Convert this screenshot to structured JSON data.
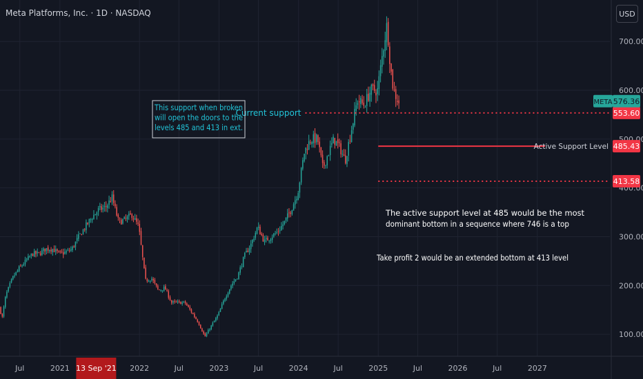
{
  "header": {
    "title": "Meta Platforms, Inc. · 1D · NASDAQ",
    "currency_button": "USD"
  },
  "chart_data": {
    "type": "candlestick",
    "symbol": "META",
    "y_axis": {
      "ticks": [
        100,
        200,
        300,
        400,
        500,
        600,
        700
      ],
      "tick_labels": [
        "100.00",
        "200.00",
        "300.00",
        "400.00",
        "500.00",
        "600.00",
        "700.00"
      ],
      "range": [
        55,
        785
      ]
    },
    "x_axis": {
      "range": [
        "2020-04-01",
        "2027-11-30"
      ],
      "ticks": [
        {
          "date": "2020-07-01",
          "label": "Jul"
        },
        {
          "date": "2021-01-01",
          "label": "2021"
        },
        {
          "date": "2022-01-01",
          "label": "2022"
        },
        {
          "date": "2022-07-01",
          "label": "Jul"
        },
        {
          "date": "2023-01-01",
          "label": "2023"
        },
        {
          "date": "2023-07-01",
          "label": "Jul"
        },
        {
          "date": "2024-01-01",
          "label": "2024"
        },
        {
          "date": "2024-07-01",
          "label": "Jul"
        },
        {
          "date": "2025-01-01",
          "label": "2025"
        },
        {
          "date": "2025-07-01",
          "label": "Jul"
        },
        {
          "date": "2026-01-01",
          "label": "2026"
        },
        {
          "date": "2026-07-01",
          "label": "Jul"
        },
        {
          "date": "2027-01-01",
          "label": "2027"
        }
      ],
      "crosshair_label": {
        "date": "2021-09-13",
        "label": "13 Sep '21",
        "color": "#b2191c"
      }
    },
    "price_path": [
      [
        "2020-04-01",
        155
      ],
      [
        "2020-04-15",
        135
      ],
      [
        "2020-05-01",
        180
      ],
      [
        "2020-06-01",
        215
      ],
      [
        "2020-07-01",
        235
      ],
      [
        "2020-08-01",
        250
      ],
      [
        "2020-09-01",
        265
      ],
      [
        "2020-10-01",
        265
      ],
      [
        "2020-11-01",
        275
      ],
      [
        "2020-12-01",
        275
      ],
      [
        "2021-01-01",
        265
      ],
      [
        "2021-02-01",
        268
      ],
      [
        "2021-03-01",
        275
      ],
      [
        "2021-04-01",
        300
      ],
      [
        "2021-05-01",
        320
      ],
      [
        "2021-06-01",
        340
      ],
      [
        "2021-07-01",
        355
      ],
      [
        "2021-08-01",
        360
      ],
      [
        "2021-09-01",
        380
      ],
      [
        "2021-10-01",
        330
      ],
      [
        "2021-11-01",
        335
      ],
      [
        "2021-12-01",
        345
      ],
      [
        "2022-01-01",
        320
      ],
      [
        "2022-02-01",
        210
      ],
      [
        "2022-03-01",
        215
      ],
      [
        "2022-04-01",
        190
      ],
      [
        "2022-05-01",
        195
      ],
      [
        "2022-06-01",
        165
      ],
      [
        "2022-07-01",
        165
      ],
      [
        "2022-08-01",
        165
      ],
      [
        "2022-09-01",
        145
      ],
      [
        "2022-10-01",
        125
      ],
      [
        "2022-11-01",
        95
      ],
      [
        "2022-12-01",
        118
      ],
      [
        "2023-01-01",
        140
      ],
      [
        "2023-02-01",
        175
      ],
      [
        "2023-03-01",
        200
      ],
      [
        "2023-04-01",
        220
      ],
      [
        "2023-05-01",
        260
      ],
      [
        "2023-06-01",
        285
      ],
      [
        "2023-07-01",
        320
      ],
      [
        "2023-08-01",
        290
      ],
      [
        "2023-09-01",
        300
      ],
      [
        "2023-10-01",
        310
      ],
      [
        "2023-11-01",
        330
      ],
      [
        "2023-12-01",
        355
      ],
      [
        "2024-01-01",
        390
      ],
      [
        "2024-02-01",
        475
      ],
      [
        "2024-03-01",
        500
      ],
      [
        "2024-04-01",
        500
      ],
      [
        "2024-04-25",
        440
      ],
      [
        "2024-05-15",
        465
      ],
      [
        "2024-06-15",
        500
      ],
      [
        "2024-07-15",
        480
      ],
      [
        "2024-08-05",
        455
      ],
      [
        "2024-09-01",
        515
      ],
      [
        "2024-10-01",
        580
      ],
      [
        "2024-11-01",
        570
      ],
      [
        "2024-12-01",
        600
      ],
      [
        "2025-01-01",
        600
      ],
      [
        "2025-02-01",
        700
      ],
      [
        "2025-02-14",
        736
      ],
      [
        "2025-03-01",
        650
      ],
      [
        "2025-03-15",
        600
      ],
      [
        "2025-04-07",
        576.36
      ]
    ],
    "current_price": {
      "value": 576.36,
      "label": "576.36",
      "symbol_label": "META",
      "color": "#26a69a"
    },
    "price_labels": [
      {
        "value": 553.6,
        "label": "553.60",
        "color": "#f23645"
      },
      {
        "value": 485.43,
        "label": "485.43",
        "color": "#f23645"
      },
      {
        "value": 413.58,
        "label": "413.58",
        "color": "#f23645"
      }
    ],
    "levels": [
      {
        "value": 553.6,
        "style": "dotted",
        "color": "#f23645",
        "from": "2024-02-01",
        "text": "Current support",
        "text_color": "#22c4d8"
      },
      {
        "value": 485.43,
        "style": "solid",
        "color": "#f23645",
        "from": "2025-01-01",
        "text": "Active Support Level",
        "text_color": "#d1d4dc"
      },
      {
        "value": 413.58,
        "style": "dotted",
        "color": "#f23645",
        "from": "2025-01-01",
        "text": "",
        "text_color": "#d1d4dc"
      }
    ],
    "annotations": [
      {
        "lines": [
          "This support when broken",
          "will open the doors to the",
          "levels 485 and 413 in ext."
        ],
        "color": "#22c4d8",
        "boxed": true
      },
      {
        "lines": [
          "The active support level at 485 would be the most",
          "dominant bottom in a sequence where 746 is a top"
        ],
        "color": "#ffffff",
        "boxed": false
      },
      {
        "lines": [
          "Take profit 2 would be an extended bottom at 413 level"
        ],
        "color": "#ffffff",
        "boxed": false
      }
    ],
    "colors": {
      "up": "#26a69a",
      "down": "#ef5350",
      "background": "#131722",
      "grid": "#1f2331",
      "axis_text": "#b2b5be"
    }
  }
}
